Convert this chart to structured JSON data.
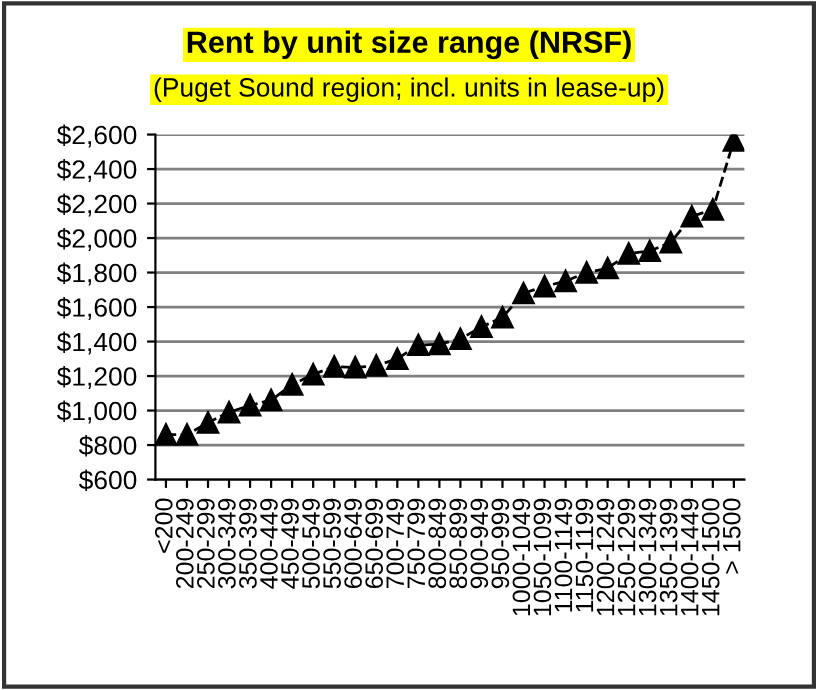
{
  "chart_data": {
    "type": "line",
    "title": "Rent by unit size range (NRSF)",
    "subtitle": "(Puget Sound region; incl. units in lease-up)",
    "categories": [
      "<200",
      "200-249",
      "250-299",
      "300-349",
      "350-399",
      "400-449",
      "450-499",
      "500-549",
      "550-599",
      "600-649",
      "650-699",
      "700-749",
      "750-799",
      "800-849",
      "850-899",
      "900-949",
      "950-999",
      "1000-1049",
      "1050-1099",
      "1100-1149",
      "1150-1199",
      "1200-1249",
      "1250-1299",
      "1300-1349",
      "1350-1399",
      "1400-1449",
      "1450-1500",
      "> 1500"
    ],
    "series": [
      {
        "color": "#000000",
        "values": [
          860,
          860,
          930,
          990,
          1030,
          1060,
          1150,
          1210,
          1255,
          1250,
          1260,
          1300,
          1380,
          1385,
          1415,
          1485,
          1540,
          1680,
          1720,
          1750,
          1800,
          1825,
          1910,
          1925,
          1975,
          2125,
          2165,
          2565
        ]
      }
    ],
    "ylim": [
      600,
      2600
    ],
    "yticks": [
      {
        "value": 600,
        "label": "$600"
      },
      {
        "value": 800,
        "label": "$800"
      },
      {
        "value": 1000,
        "label": "$1,000"
      },
      {
        "value": 1200,
        "label": "$1,200"
      },
      {
        "value": 1400,
        "label": "$1,400"
      },
      {
        "value": 1600,
        "label": "$1,600"
      },
      {
        "value": 1800,
        "label": "$1,800"
      },
      {
        "value": 2000,
        "label": "$2,000"
      },
      {
        "value": 2200,
        "label": "$2,200"
      },
      {
        "value": 2400,
        "label": "$2,400"
      },
      {
        "value": 2600,
        "label": "$2,600"
      }
    ],
    "grid": "y",
    "marker": "triangle",
    "line_style": "dashed",
    "legend": false
  }
}
